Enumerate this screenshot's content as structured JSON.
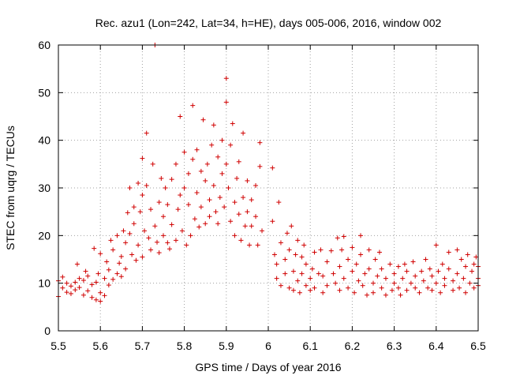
{
  "chart_data": {
    "type": "scatter",
    "title": "Rec. azu1 (Lon=242, Lat=34, h=HE), days 005-006, 2016, window 002",
    "xlabel": "GPS time / Days of year 2016",
    "ylabel": "STEC from uqrg / TECUs",
    "xlim": [
      5.5,
      6.5
    ],
    "ylim": [
      0,
      60
    ],
    "xticks": [
      5.5,
      5.6,
      5.7,
      5.8,
      5.9,
      6,
      6.1,
      6.2,
      6.3,
      6.4,
      6.5
    ],
    "xtick_labels": [
      "5.5",
      "5.6",
      "5.7",
      "5.8",
      "5.9",
      "6",
      "6.1",
      "6.2",
      "6.3",
      "6.4",
      "6.5"
    ],
    "yticks": [
      0,
      10,
      20,
      30,
      40,
      50,
      60
    ],
    "ytick_labels": [
      "0",
      "10",
      "20",
      "30",
      "40",
      "50",
      "60"
    ],
    "grid": true,
    "marker": "+",
    "color": "#d00000",
    "series": [
      {
        "name": "STEC",
        "points": [
          [
            5.5,
            10.5
          ],
          [
            5.5,
            7.2
          ],
          [
            5.51,
            9.0
          ],
          [
            5.51,
            11.3
          ],
          [
            5.52,
            8.1
          ],
          [
            5.52,
            10.0
          ],
          [
            5.53,
            9.4
          ],
          [
            5.53,
            7.8
          ],
          [
            5.54,
            10.2
          ],
          [
            5.54,
            8.6
          ],
          [
            5.545,
            14.0
          ],
          [
            5.55,
            9.1
          ],
          [
            5.55,
            11.0
          ],
          [
            5.56,
            7.5
          ],
          [
            5.56,
            10.6
          ],
          [
            5.565,
            12.5
          ],
          [
            5.57,
            8.4
          ],
          [
            5.57,
            11.5
          ],
          [
            5.58,
            9.7
          ],
          [
            5.58,
            7.0
          ],
          [
            5.585,
            17.3
          ],
          [
            5.59,
            10.2
          ],
          [
            5.59,
            6.5
          ],
          [
            5.595,
            12.0
          ],
          [
            5.6,
            8.0
          ],
          [
            5.6,
            16.2
          ],
          [
            5.6,
            6.2
          ],
          [
            5.61,
            11.0
          ],
          [
            5.61,
            7.4
          ],
          [
            5.615,
            14.5
          ],
          [
            5.62,
            9.6
          ],
          [
            5.62,
            12.8
          ],
          [
            5.625,
            19.0
          ],
          [
            5.63,
            10.8
          ],
          [
            5.63,
            17.0
          ],
          [
            5.64,
            12.0
          ],
          [
            5.64,
            20.0
          ],
          [
            5.645,
            14.2
          ],
          [
            5.65,
            15.6
          ],
          [
            5.65,
            11.4
          ],
          [
            5.655,
            21.0
          ],
          [
            5.66,
            18.5
          ],
          [
            5.66,
            13.0
          ],
          [
            5.665,
            24.8
          ],
          [
            5.67,
            30.0
          ],
          [
            5.67,
            20.4
          ],
          [
            5.675,
            16.0
          ],
          [
            5.68,
            26.0
          ],
          [
            5.68,
            22.5
          ],
          [
            5.685,
            14.8
          ],
          [
            5.69,
            31.0
          ],
          [
            5.69,
            18.0
          ],
          [
            5.695,
            25.0
          ],
          [
            5.7,
            36.2
          ],
          [
            5.7,
            28.5
          ],
          [
            5.7,
            15.5
          ],
          [
            5.705,
            21.0
          ],
          [
            5.71,
            41.5
          ],
          [
            5.71,
            30.5
          ],
          [
            5.715,
            19.5
          ],
          [
            5.72,
            17.0
          ],
          [
            5.72,
            25.5
          ],
          [
            5.725,
            35.0
          ],
          [
            5.73,
            60.0
          ],
          [
            5.73,
            22.0
          ],
          [
            5.735,
            18.6
          ],
          [
            5.74,
            27.0
          ],
          [
            5.74,
            16.4
          ],
          [
            5.745,
            32.0
          ],
          [
            5.75,
            20.0
          ],
          [
            5.75,
            24.0
          ],
          [
            5.755,
            30.0
          ],
          [
            5.76,
            18.5
          ],
          [
            5.76,
            26.5
          ],
          [
            5.765,
            17.2
          ],
          [
            5.77,
            31.8
          ],
          [
            5.77,
            22.3
          ],
          [
            5.78,
            35.0
          ],
          [
            5.78,
            19.0
          ],
          [
            5.785,
            25.5
          ],
          [
            5.79,
            45.0
          ],
          [
            5.79,
            28.5
          ],
          [
            5.795,
            21.0
          ],
          [
            5.8,
            37.5
          ],
          [
            5.8,
            30.0
          ],
          [
            5.805,
            18.0
          ],
          [
            5.81,
            26.5
          ],
          [
            5.81,
            33.0
          ],
          [
            5.815,
            20.0
          ],
          [
            5.82,
            47.3
          ],
          [
            5.82,
            36.0
          ],
          [
            5.825,
            23.5
          ],
          [
            5.83,
            38.0
          ],
          [
            5.83,
            29.0
          ],
          [
            5.835,
            21.8
          ],
          [
            5.84,
            33.5
          ],
          [
            5.84,
            26.0
          ],
          [
            5.845,
            44.3
          ],
          [
            5.85,
            31.5
          ],
          [
            5.85,
            22.5
          ],
          [
            5.855,
            35.0
          ],
          [
            5.86,
            27.5
          ],
          [
            5.86,
            24.0
          ],
          [
            5.865,
            39.0
          ],
          [
            5.87,
            43.2
          ],
          [
            5.87,
            30.5
          ],
          [
            5.875,
            25.0
          ],
          [
            5.88,
            36.5
          ],
          [
            5.88,
            22.5
          ],
          [
            5.885,
            28.0
          ],
          [
            5.89,
            40.0
          ],
          [
            5.89,
            33.0
          ],
          [
            5.895,
            26.0
          ],
          [
            5.9,
            53.0
          ],
          [
            5.9,
            48.0
          ],
          [
            5.9,
            35.0
          ],
          [
            5.905,
            30.0
          ],
          [
            5.91,
            23.0
          ],
          [
            5.91,
            39.0
          ],
          [
            5.915,
            43.5
          ],
          [
            5.92,
            27.0
          ],
          [
            5.92,
            20.0
          ],
          [
            5.925,
            32.0
          ],
          [
            5.93,
            24.5
          ],
          [
            5.93,
            35.5
          ],
          [
            5.935,
            19.0
          ],
          [
            5.94,
            41.5
          ],
          [
            5.94,
            28.0
          ],
          [
            5.945,
            22.0
          ],
          [
            5.95,
            25.0
          ],
          [
            5.95,
            31.5
          ],
          [
            5.955,
            18.0
          ],
          [
            5.96,
            27.5
          ],
          [
            5.96,
            22.0
          ],
          [
            5.97,
            30.5
          ],
          [
            5.97,
            24.0
          ],
          [
            5.975,
            18.0
          ],
          [
            5.98,
            39.5
          ],
          [
            5.98,
            34.5
          ],
          [
            5.985,
            21.0
          ],
          [
            6.01,
            34.2
          ],
          [
            6.01,
            23.0
          ],
          [
            6.015,
            16.0
          ],
          [
            6.02,
            14.0
          ],
          [
            6.02,
            11.0
          ],
          [
            6.025,
            27.0
          ],
          [
            6.03,
            18.5
          ],
          [
            6.03,
            9.5
          ],
          [
            6.04,
            15.0
          ],
          [
            6.04,
            12.0
          ],
          [
            6.045,
            20.5
          ],
          [
            6.05,
            9.0
          ],
          [
            6.05,
            17.0
          ],
          [
            6.055,
            22.0
          ],
          [
            6.06,
            12.5
          ],
          [
            6.06,
            8.5
          ],
          [
            6.065,
            16.0
          ],
          [
            6.07,
            10.5
          ],
          [
            6.07,
            19.0
          ],
          [
            6.075,
            8.0
          ],
          [
            6.08,
            15.5
          ],
          [
            6.08,
            12.0
          ],
          [
            6.085,
            18.0
          ],
          [
            6.09,
            9.5
          ],
          [
            6.09,
            14.0
          ],
          [
            6.1,
            11.0
          ],
          [
            6.1,
            8.5
          ],
          [
            6.105,
            13.0
          ],
          [
            6.11,
            16.5
          ],
          [
            6.11,
            9.0
          ],
          [
            6.12,
            12.0
          ],
          [
            6.125,
            17.0
          ],
          [
            6.13,
            8.0
          ],
          [
            6.13,
            11.5
          ],
          [
            6.14,
            14.5
          ],
          [
            6.14,
            9.5
          ],
          [
            6.15,
            16.8
          ],
          [
            6.155,
            12.0
          ],
          [
            6.16,
            10.0
          ],
          [
            6.165,
            19.5
          ],
          [
            6.17,
            8.5
          ],
          [
            6.17,
            13.5
          ],
          [
            6.175,
            17.0
          ],
          [
            6.18,
            11.0
          ],
          [
            6.18,
            19.8
          ],
          [
            6.19,
            9.0
          ],
          [
            6.19,
            15.0
          ],
          [
            6.2,
            12.5
          ],
          [
            6.2,
            17.5
          ],
          [
            6.205,
            8.0
          ],
          [
            6.21,
            14.0
          ],
          [
            6.215,
            10.5
          ],
          [
            6.22,
            20.0
          ],
          [
            6.22,
            16.0
          ],
          [
            6.225,
            9.5
          ],
          [
            6.23,
            12.0
          ],
          [
            6.235,
            7.5
          ],
          [
            6.24,
            17.0
          ],
          [
            6.24,
            13.0
          ],
          [
            6.25,
            10.0
          ],
          [
            6.25,
            8.0
          ],
          [
            6.255,
            15.0
          ],
          [
            6.26,
            11.5
          ],
          [
            6.265,
            16.5
          ],
          [
            6.27,
            9.0
          ],
          [
            6.27,
            13.0
          ],
          [
            6.28,
            7.5
          ],
          [
            6.28,
            11.0
          ],
          [
            6.29,
            14.0
          ],
          [
            6.295,
            8.5
          ],
          [
            6.3,
            12.0
          ],
          [
            6.3,
            10.0
          ],
          [
            6.31,
            13.5
          ],
          [
            6.31,
            9.0
          ],
          [
            6.315,
            7.5
          ],
          [
            6.32,
            11.0
          ],
          [
            6.325,
            14.0
          ],
          [
            6.33,
            8.5
          ],
          [
            6.33,
            12.5
          ],
          [
            6.34,
            10.0
          ],
          [
            6.345,
            14.5
          ],
          [
            6.35,
            9.0
          ],
          [
            6.35,
            11.5
          ],
          [
            6.36,
            8.0
          ],
          [
            6.365,
            12.5
          ],
          [
            6.37,
            10.5
          ],
          [
            6.375,
            15.0
          ],
          [
            6.38,
            9.0
          ],
          [
            6.385,
            13.0
          ],
          [
            6.39,
            8.5
          ],
          [
            6.39,
            11.5
          ],
          [
            6.4,
            18.0
          ],
          [
            6.4,
            10.0
          ],
          [
            6.405,
            12.5
          ],
          [
            6.41,
            8.0
          ],
          [
            6.415,
            14.0
          ],
          [
            6.42,
            9.5
          ],
          [
            6.42,
            11.0
          ],
          [
            6.43,
            16.5
          ],
          [
            6.43,
            13.0
          ],
          [
            6.44,
            8.5
          ],
          [
            6.44,
            10.5
          ],
          [
            6.45,
            17.0
          ],
          [
            6.45,
            12.0
          ],
          [
            6.455,
            9.0
          ],
          [
            6.46,
            15.0
          ],
          [
            6.465,
            11.0
          ],
          [
            6.47,
            8.0
          ],
          [
            6.47,
            13.5
          ],
          [
            6.475,
            16.0
          ],
          [
            6.48,
            10.0
          ],
          [
            6.485,
            12.5
          ],
          [
            6.49,
            9.0
          ],
          [
            6.49,
            14.0
          ],
          [
            6.495,
            15.5
          ],
          [
            6.5,
            11.0
          ],
          [
            6.5,
            13.5
          ],
          [
            6.5,
            9.5
          ]
        ]
      }
    ]
  }
}
